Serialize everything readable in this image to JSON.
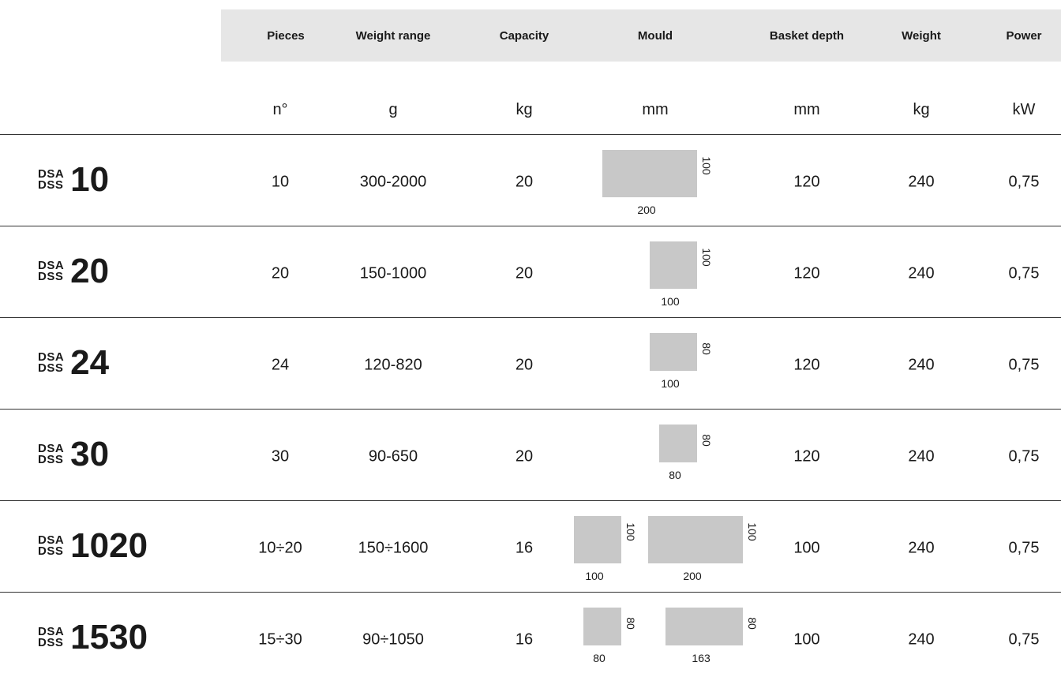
{
  "headers": {
    "pieces": "Pieces",
    "weight_range": "Weight range",
    "capacity": "Capacity",
    "mould": "Mould",
    "basket_depth": "Basket depth",
    "weight": "Weight",
    "power": "Power"
  },
  "units": {
    "pieces": "n°",
    "weight_range": "g",
    "capacity": "kg",
    "mould": "mm",
    "basket_depth": "mm",
    "weight": "kg",
    "power": "kW"
  },
  "rows": [
    {
      "prefix_top": "DSA",
      "prefix_bottom": "DSS",
      "model": "10",
      "pieces": "10",
      "weight_range": "300-2000",
      "capacity": "20",
      "moulds": [
        {
          "w": "200",
          "h": "100"
        }
      ],
      "basket_depth": "120",
      "weight": "240",
      "power": "0,75"
    },
    {
      "prefix_top": "DSA",
      "prefix_bottom": "DSS",
      "model": "20",
      "pieces": "20",
      "weight_range": "150-1000",
      "capacity": "20",
      "moulds": [
        {
          "w": "100",
          "h": "100"
        }
      ],
      "basket_depth": "120",
      "weight": "240",
      "power": "0,75"
    },
    {
      "prefix_top": "DSA",
      "prefix_bottom": "DSS",
      "model": "24",
      "pieces": "24",
      "weight_range": "120-820",
      "capacity": "20",
      "moulds": [
        {
          "w": "100",
          "h": "80"
        }
      ],
      "basket_depth": "120",
      "weight": "240",
      "power": "0,75"
    },
    {
      "prefix_top": "DSA",
      "prefix_bottom": "DSS",
      "model": "30",
      "pieces": "30",
      "weight_range": "90-650",
      "capacity": "20",
      "moulds": [
        {
          "w": "80",
          "h": "80"
        }
      ],
      "basket_depth": "120",
      "weight": "240",
      "power": "0,75"
    },
    {
      "prefix_top": "DSA",
      "prefix_bottom": "DSS",
      "model": "1020",
      "pieces": "10÷20",
      "weight_range": "150÷1600",
      "capacity": "16",
      "moulds": [
        {
          "w": "100",
          "h": "100"
        },
        {
          "w": "200",
          "h": "100"
        }
      ],
      "basket_depth": "100",
      "weight": "240",
      "power": "0,75"
    },
    {
      "prefix_top": "DSA",
      "prefix_bottom": "DSS",
      "model": "1530",
      "pieces": "15÷30",
      "weight_range": "90÷1050",
      "capacity": "16",
      "moulds": [
        {
          "w": "80",
          "h": "80"
        },
        {
          "w": "163",
          "h": "80"
        }
      ],
      "basket_depth": "100",
      "weight": "240",
      "power": "0,75"
    }
  ]
}
